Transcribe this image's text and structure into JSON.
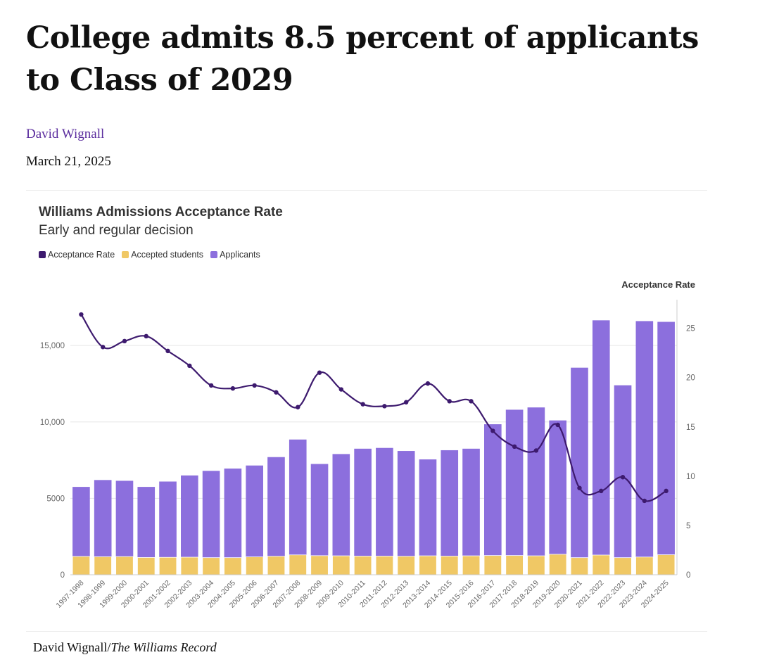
{
  "article": {
    "headline": "College admits 8.5 percent of applicants to Class of 2029",
    "author": "David Wignall",
    "date": "March 21, 2025",
    "credit_author": "David Wignall/",
    "credit_publication": "The Williams Record"
  },
  "colors": {
    "acceptance_rate": "#3d1a6e",
    "accepted": "#f0c865",
    "applicants": "#8c6fdd"
  },
  "chart_data": {
    "type": "bar",
    "title": "Williams Admissions Acceptance Rate",
    "subtitle": "Early and regular decision",
    "legend_position": "top-left",
    "grid": true,
    "categories": [
      "1997-1998",
      "1998-1999",
      "1999-2000",
      "2000-2001",
      "2001-2002",
      "2002-2003",
      "2003-2004",
      "2004-2005",
      "2005-2006",
      "2006-2007",
      "2007-2008",
      "2008-2009",
      "2009-2010",
      "2010-2011",
      "2011-2012",
      "2012-2013",
      "2013-2014",
      "2014-2015",
      "2015-2016",
      "2016-2017",
      "2017-2018",
      "2018-2019",
      "2019-2020",
      "2020-2021",
      "2021-2022",
      "2022-2023",
      "2023-2024",
      "2024-2025"
    ],
    "series": [
      {
        "name": "Acceptance Rate",
        "type": "line",
        "axis": "right",
        "values": [
          26.4,
          23.1,
          23.7,
          24.2,
          22.7,
          21.2,
          19.2,
          18.9,
          19.2,
          18.5,
          17.0,
          20.5,
          18.8,
          17.3,
          17.1,
          17.5,
          19.4,
          17.6,
          17.6,
          14.6,
          13.0,
          12.6,
          15.2,
          8.8,
          8.5,
          9.9,
          7.5,
          8.5
        ]
      },
      {
        "name": "Accepted students",
        "type": "bar",
        "axis": "left",
        "values": [
          1200,
          1180,
          1190,
          1130,
          1140,
          1150,
          1120,
          1120,
          1170,
          1210,
          1300,
          1250,
          1240,
          1220,
          1220,
          1210,
          1240,
          1220,
          1240,
          1260,
          1260,
          1240,
          1340,
          1120,
          1290,
          1120,
          1160,
          1310
        ]
      },
      {
        "name": "Applicants",
        "type": "bar",
        "axis": "left",
        "values": [
          5750,
          6200,
          6150,
          5750,
          6100,
          6500,
          6800,
          6950,
          7150,
          7700,
          8850,
          7250,
          7900,
          8250,
          8300,
          8100,
          7550,
          8150,
          8250,
          9850,
          10800,
          10950,
          10100,
          13550,
          16650,
          12400,
          16600,
          16550
        ]
      }
    ],
    "y_left": {
      "min": 0,
      "max": 18000,
      "ticks": [
        0,
        5000,
        10000,
        15000
      ],
      "tick_labels": [
        "0",
        "5000",
        "10,000",
        "15,000"
      ]
    },
    "y_right": {
      "label": "Acceptance Rate",
      "min": 0,
      "max": 27.9,
      "ticks": [
        0,
        5,
        10,
        15,
        20,
        25
      ],
      "tick_labels": [
        "0",
        "5",
        "10",
        "15",
        "20",
        "25"
      ]
    }
  }
}
